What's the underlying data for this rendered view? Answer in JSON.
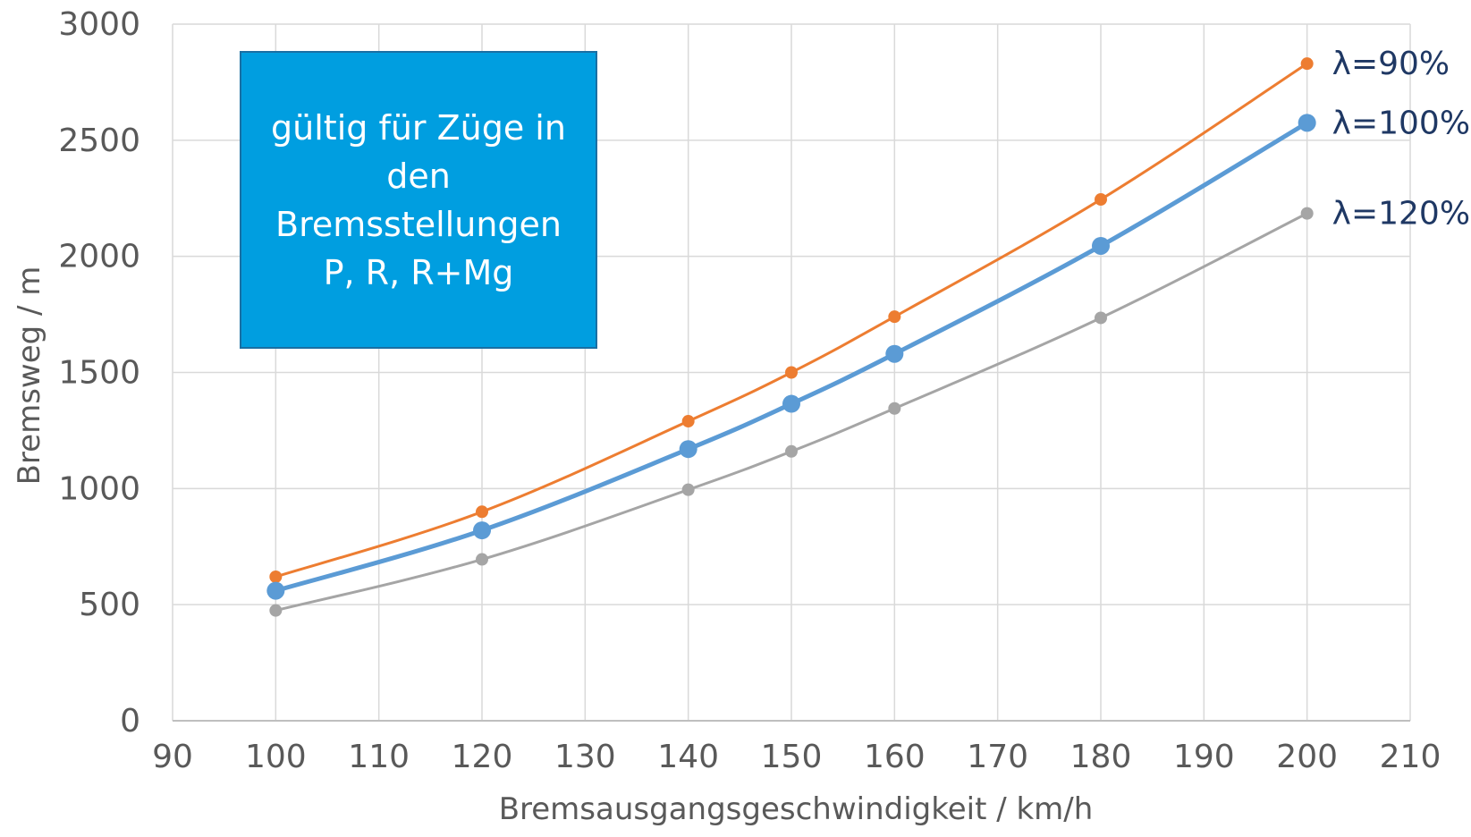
{
  "chart_data": {
    "type": "line",
    "x": [
      100,
      120,
      140,
      150,
      160,
      180,
      200
    ],
    "series": [
      {
        "name": "λ=90%",
        "values": [
          620,
          900,
          1290,
          1500,
          1740,
          2245,
          2830
        ],
        "color": "#ed7d31"
      },
      {
        "name": "λ=100%",
        "values": [
          560,
          820,
          1170,
          1365,
          1580,
          2045,
          2575
        ],
        "color": "#5b9bd5"
      },
      {
        "name": "λ=120%",
        "values": [
          475,
          695,
          995,
          1160,
          1345,
          1735,
          2185
        ],
        "color": "#a5a5a5"
      }
    ],
    "xlabel": "Bremsausgangsgeschwindigkeit  / km/h",
    "ylabel": "Bremsweg / m",
    "xlim": [
      90,
      210
    ],
    "ylim": [
      0,
      3000
    ],
    "xticks": [
      "90",
      "100",
      "110",
      "120",
      "130",
      "140",
      "150",
      "160",
      "170",
      "180",
      "190",
      "200",
      "210"
    ],
    "yticks": [
      "0",
      "500",
      "1000",
      "1500",
      "2000",
      "2500",
      "3000"
    ],
    "grid": true,
    "annotation": "gültig für Züge in den Bremsstellungen P, R, R+Mg"
  }
}
